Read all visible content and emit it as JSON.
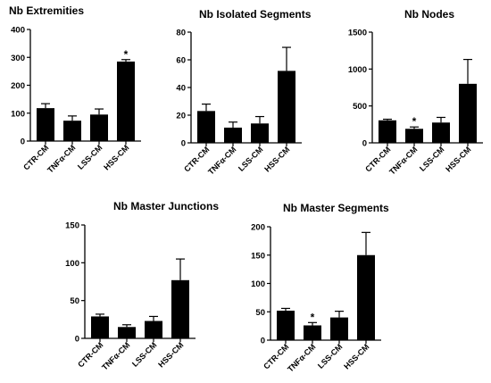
{
  "chart_data": [
    {
      "type": "bar",
      "title": "Nb Extremities",
      "categories": [
        "CTR-CM",
        "TNFα-CM",
        "LSS-CM",
        "HSS-CM"
      ],
      "values": [
        118,
        73,
        95,
        285
      ],
      "errors": [
        16,
        17,
        20,
        7
      ],
      "significance": [
        "",
        "",
        "",
        "*"
      ],
      "ylim": [
        0,
        400
      ],
      "yticks": [
        0,
        100,
        200,
        300,
        400
      ],
      "grid": false
    },
    {
      "type": "bar",
      "title": "Nb Isolated Segments",
      "categories": [
        "CTR-CM",
        "TNFα-CM",
        "LSS-CM",
        "HSS-CM"
      ],
      "values": [
        23,
        11,
        14,
        52
      ],
      "errors": [
        5,
        4,
        5,
        17
      ],
      "significance": [
        "",
        "",
        "",
        ""
      ],
      "ylim": [
        0,
        80
      ],
      "yticks": [
        0,
        20,
        40,
        60,
        80
      ],
      "grid": false
    },
    {
      "type": "bar",
      "title": "Nb Nodes",
      "categories": [
        "CTR-CM",
        "TNFα-CM",
        "LSS-CM",
        "HSS-CM"
      ],
      "values": [
        305,
        190,
        275,
        800
      ],
      "errors": [
        15,
        25,
        70,
        330
      ],
      "significance": [
        "",
        "*",
        "",
        ""
      ],
      "ylim": [
        0,
        1500
      ],
      "yticks": [
        0,
        500,
        1000,
        1500
      ],
      "grid": false
    },
    {
      "type": "bar",
      "title": "Nb Master Junctions",
      "categories": [
        "CTR-CM",
        "TNFα-CM",
        "LSS-CM",
        "HSS-CM"
      ],
      "values": [
        29,
        15,
        23,
        77
      ],
      "errors": [
        3,
        3,
        6,
        28
      ],
      "significance": [
        "",
        "",
        "",
        ""
      ],
      "ylim": [
        0,
        150
      ],
      "yticks": [
        0,
        50,
        100,
        150
      ],
      "grid": false
    },
    {
      "type": "bar",
      "title": "Nb Master Segments",
      "categories": [
        "CTR-CM",
        "TNFα-CM",
        "LSS-CM",
        "HSS-CM"
      ],
      "values": [
        52,
        26,
        40,
        150
      ],
      "errors": [
        4,
        5,
        11,
        40
      ],
      "significance": [
        "",
        "*",
        "",
        ""
      ],
      "ylim": [
        0,
        200
      ],
      "yticks": [
        0,
        50,
        100,
        150,
        200
      ],
      "grid": false
    }
  ]
}
